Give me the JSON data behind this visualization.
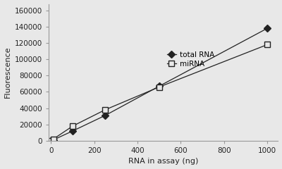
{
  "total_rna_x": [
    0,
    10,
    100,
    250,
    500,
    1000
  ],
  "total_rna_y": [
    0,
    1000,
    12000,
    31000,
    67000,
    138000
  ],
  "mirna_x": [
    0,
    10,
    100,
    250,
    500,
    1000
  ],
  "mirna_y": [
    0,
    2000,
    18000,
    38000,
    66000,
    118000
  ],
  "xlabel": "RNA in assay (ng)",
  "ylabel": "Fluorescence",
  "xlim": [
    -10,
    1050
  ],
  "ylim": [
    0,
    168000
  ],
  "yticks": [
    0,
    20000,
    40000,
    60000,
    80000,
    100000,
    120000,
    140000,
    160000
  ],
  "xticks": [
    0,
    200,
    400,
    600,
    800,
    1000
  ],
  "legend_labels": [
    "total RNA",
    "miRNA"
  ],
  "line_color": "#222222",
  "marker_total": "D",
  "marker_mirna": "s",
  "title": "",
  "bg_color": "#e8e8e8",
  "plot_bg_color": "#e8e8e8",
  "fontsize_labels": 8,
  "fontsize_ticks": 7.5
}
